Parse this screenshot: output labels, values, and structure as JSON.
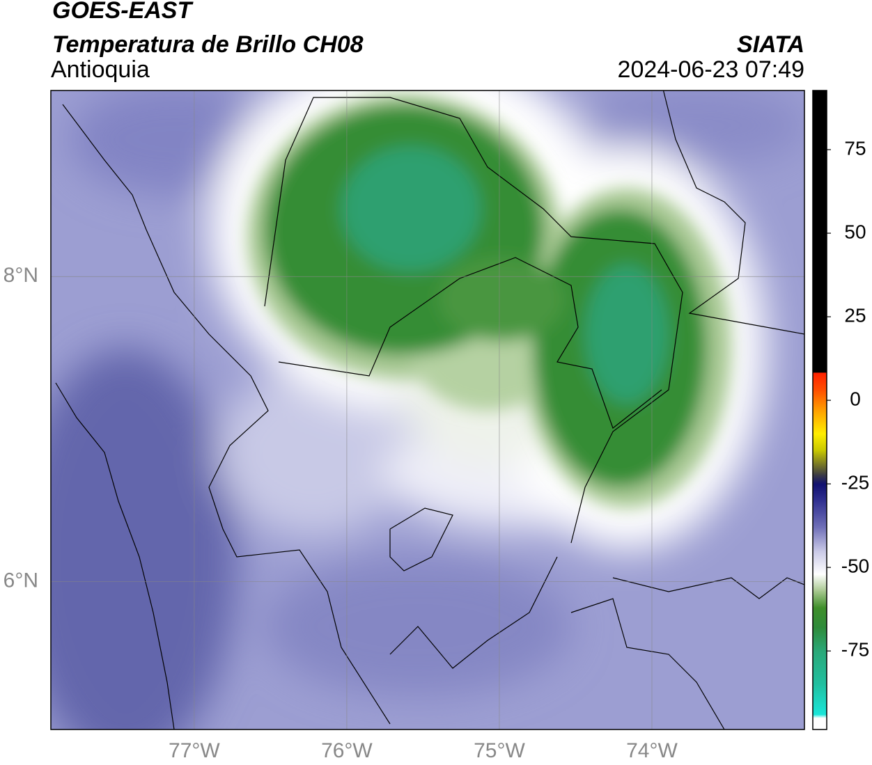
{
  "header": {
    "satellite": "GOES-EAST",
    "product": "Temperatura de Brillo CH08",
    "region": "Antioquia",
    "source": "SIATA",
    "datetime": "2024-06-23 07:49"
  },
  "map": {
    "xlim": [
      -77.94,
      -73.0
    ],
    "ylim": [
      5.03,
      9.22
    ],
    "xticks": [
      {
        "value": -77,
        "label": "77°W"
      },
      {
        "value": -76,
        "label": "76°W"
      },
      {
        "value": -75,
        "label": "75°W"
      },
      {
        "value": -74,
        "label": "74°W"
      }
    ],
    "yticks": [
      {
        "value": 8,
        "label": "8°N"
      },
      {
        "value": 6,
        "label": "6°N"
      }
    ],
    "grid": true
  },
  "colorbar": {
    "lim": [
      -98.5,
      92.7
    ],
    "ticks": [
      75,
      50,
      25,
      0,
      -25,
      -50,
      -75
    ],
    "stops": [
      {
        "value": -98.5,
        "color": "#ffffff"
      },
      {
        "value": -95,
        "color": "#ffffff"
      },
      {
        "value": -94,
        "color": "#19e6d9"
      },
      {
        "value": -85,
        "color": "#20c0a0"
      },
      {
        "value": -75,
        "color": "#2aa878"
      },
      {
        "value": -68,
        "color": "#2e8b3a"
      },
      {
        "value": -62,
        "color": "#3f8f2a"
      },
      {
        "value": -57,
        "color": "#a8c890"
      },
      {
        "value": -52,
        "color": "#ffffff"
      },
      {
        "value": -45,
        "color": "#c8c8e6"
      },
      {
        "value": -38,
        "color": "#7070b8"
      },
      {
        "value": -30,
        "color": "#303090"
      },
      {
        "value": -25,
        "color": "#101070"
      },
      {
        "value": -22,
        "color": "#404040"
      },
      {
        "value": -15,
        "color": "#c8c800"
      },
      {
        "value": -10,
        "color": "#ffee00"
      },
      {
        "value": -3,
        "color": "#ffa000"
      },
      {
        "value": 3,
        "color": "#ff5000"
      },
      {
        "value": 8.3,
        "color": "#ff2000"
      },
      {
        "value": 8.4,
        "color": "#000000"
      },
      {
        "value": 92.7,
        "color": "#000000"
      }
    ]
  }
}
